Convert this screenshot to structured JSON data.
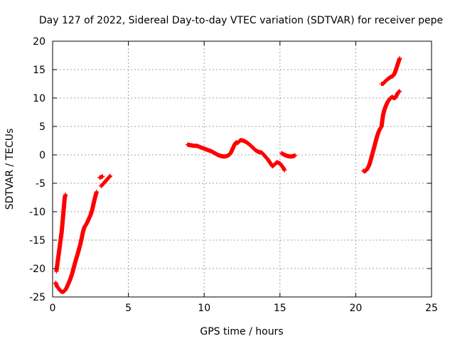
{
  "chart_data": {
    "type": "scatter",
    "title": "Day 127 of 2022, Sidereal Day-to-day VTEC variation (SDTVAR) for receiver pepe",
    "xlabel": "GPS time / hours",
    "ylabel": "SDTVAR / TECUs",
    "xlim": [
      0,
      25
    ],
    "ylim": [
      -25,
      20
    ],
    "xticks": [
      0,
      5,
      10,
      15,
      20,
      25
    ],
    "yticks": [
      -25,
      -20,
      -15,
      -10,
      -5,
      0,
      5,
      10,
      15,
      20
    ],
    "grid": true,
    "marker": "+",
    "color": "#ff0000",
    "series": [
      {
        "segments": [
          [
            [
              0.2,
              -22.5
            ],
            [
              0.3,
              -23.2
            ],
            [
              0.4,
              -23.5
            ],
            [
              0.5,
              -23.9
            ],
            [
              0.6,
              -24.1
            ],
            [
              0.7,
              -24.1
            ],
            [
              0.8,
              -23.9
            ],
            [
              0.9,
              -23.5
            ],
            [
              1.0,
              -22.9
            ],
            [
              1.1,
              -22.3
            ],
            [
              1.2,
              -21.6
            ],
            [
              1.3,
              -20.8
            ],
            [
              1.4,
              -19.8
            ],
            [
              1.5,
              -18.8
            ],
            [
              1.6,
              -17.9
            ],
            [
              1.7,
              -17.0
            ],
            [
              1.8,
              -16.0
            ],
            [
              1.9,
              -14.9
            ],
            [
              2.0,
              -13.6
            ],
            [
              2.1,
              -12.7
            ],
            [
              2.2,
              -12.3
            ],
            [
              2.3,
              -11.8
            ],
            [
              2.4,
              -11.2
            ],
            [
              2.5,
              -10.6
            ],
            [
              2.6,
              -9.8
            ],
            [
              2.7,
              -8.6
            ],
            [
              2.8,
              -7.5
            ],
            [
              2.9,
              -6.5
            ]
          ],
          [
            [
              0.25,
              -20.5
            ],
            [
              0.3,
              -19.5
            ],
            [
              0.35,
              -18.5
            ],
            [
              0.4,
              -17.5
            ],
            [
              0.45,
              -16.5
            ],
            [
              0.5,
              -15.5
            ],
            [
              0.55,
              -14.5
            ],
            [
              0.6,
              -13.5
            ],
            [
              0.65,
              -12.0
            ],
            [
              0.7,
              -10.5
            ],
            [
              0.75,
              -9.0
            ],
            [
              0.8,
              -7.5
            ],
            [
              0.85,
              -7.0
            ]
          ],
          [
            [
              3.1,
              -4.0
            ],
            [
              3.2,
              -3.9
            ],
            [
              3.3,
              -3.8
            ]
          ],
          [
            [
              3.2,
              -5.5
            ],
            [
              3.3,
              -5.2
            ],
            [
              3.4,
              -4.9
            ],
            [
              3.5,
              -4.6
            ],
            [
              3.6,
              -4.3
            ],
            [
              3.7,
              -4.0
            ],
            [
              3.8,
              -3.7
            ]
          ],
          [
            [
              8.9,
              1.8
            ],
            [
              9.1,
              1.7
            ],
            [
              9.3,
              1.6
            ],
            [
              9.5,
              1.6
            ],
            [
              9.7,
              1.4
            ],
            [
              9.9,
              1.2
            ],
            [
              10.1,
              1.0
            ],
            [
              10.3,
              0.8
            ],
            [
              10.5,
              0.6
            ],
            [
              10.7,
              0.3
            ],
            [
              10.9,
              0.0
            ],
            [
              11.1,
              -0.2
            ],
            [
              11.3,
              -0.3
            ],
            [
              11.5,
              -0.2
            ],
            [
              11.7,
              0.1
            ],
            [
              11.8,
              0.6
            ],
            [
              11.9,
              1.2
            ],
            [
              12.0,
              1.8
            ],
            [
              12.1,
              2.2
            ],
            [
              12.2,
              2.1
            ],
            [
              12.4,
              2.6
            ],
            [
              12.6,
              2.5
            ],
            [
              12.8,
              2.2
            ],
            [
              13.0,
              1.8
            ],
            [
              13.2,
              1.3
            ],
            [
              13.4,
              0.8
            ],
            [
              13.6,
              0.5
            ],
            [
              13.8,
              0.4
            ],
            [
              14.0,
              -0.2
            ],
            [
              14.2,
              -0.8
            ],
            [
              14.4,
              -1.6
            ],
            [
              14.5,
              -2.0
            ],
            [
              14.6,
              -1.8
            ],
            [
              14.8,
              -1.3
            ],
            [
              15.0,
              -1.5
            ],
            [
              15.2,
              -2.2
            ],
            [
              15.3,
              -2.7
            ]
          ],
          [
            [
              15.1,
              0.3
            ],
            [
              15.3,
              0.0
            ],
            [
              15.5,
              -0.2
            ],
            [
              15.7,
              -0.3
            ],
            [
              15.9,
              -0.2
            ],
            [
              16.0,
              -0.1
            ]
          ],
          [
            [
              20.5,
              -2.8
            ],
            [
              20.6,
              -2.9
            ],
            [
              20.7,
              -2.7
            ],
            [
              20.8,
              -2.3
            ],
            [
              20.9,
              -1.7
            ],
            [
              21.0,
              -0.8
            ],
            [
              21.1,
              0.2
            ],
            [
              21.2,
              1.2
            ],
            [
              21.3,
              2.2
            ],
            [
              21.4,
              3.2
            ],
            [
              21.5,
              4.0
            ],
            [
              21.6,
              4.6
            ],
            [
              21.7,
              5.0
            ],
            [
              21.75,
              6.0
            ],
            [
              21.8,
              7.0
            ],
            [
              21.9,
              8.0
            ],
            [
              22.0,
              8.7
            ],
            [
              22.1,
              9.3
            ],
            [
              22.2,
              9.7
            ],
            [
              22.3,
              10.0
            ],
            [
              22.4,
              10.2
            ],
            [
              22.5,
              10.0
            ],
            [
              22.6,
              10.0
            ],
            [
              22.7,
              10.5
            ],
            [
              22.8,
              11.0
            ],
            [
              22.9,
              11.2
            ]
          ],
          [
            [
              21.7,
              12.5
            ],
            [
              21.8,
              12.5
            ],
            [
              21.9,
              12.8
            ],
            [
              22.0,
              13.1
            ],
            [
              22.1,
              13.3
            ],
            [
              22.2,
              13.5
            ],
            [
              22.3,
              13.7
            ],
            [
              22.4,
              13.8
            ],
            [
              22.5,
              14.0
            ],
            [
              22.6,
              14.6
            ],
            [
              22.7,
              15.4
            ],
            [
              22.8,
              16.2
            ],
            [
              22.9,
              17.0
            ]
          ]
        ]
      }
    ]
  }
}
